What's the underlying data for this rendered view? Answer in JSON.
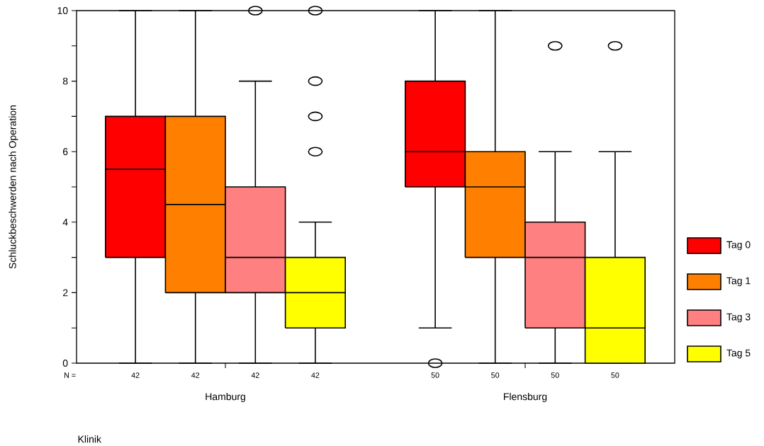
{
  "chart_data": {
    "type": "box",
    "xlabel": "Klinik",
    "ylabel": "Schluckbeschwerden nach Operation",
    "categories": [
      "Hamburg",
      "Flensburg"
    ],
    "series": [
      {
        "name": "Tag 0",
        "color": "#ff0000",
        "boxes": [
          {
            "low": 0,
            "q1": 3,
            "median": 5.5,
            "q3": 7,
            "high": 10
          },
          {
            "low": 1,
            "q1": 5,
            "median": 6,
            "q3": 8,
            "high": 10,
            "outliers": [
              0
            ]
          }
        ]
      },
      {
        "name": "Tag 1",
        "color": "#ff8000",
        "boxes": [
          {
            "low": 0,
            "q1": 2,
            "median": 4.5,
            "q3": 7,
            "high": 10
          },
          {
            "low": 0,
            "q1": 3,
            "median": 5,
            "q3": 6,
            "high": 10
          }
        ]
      },
      {
        "name": "Tag 3",
        "color": "#ff8080",
        "boxes": [
          {
            "low": 0,
            "q1": 2,
            "median": 3,
            "q3": 5,
            "high": 8,
            "outliers": [
              10
            ]
          },
          {
            "low": 0,
            "q1": 1,
            "median": 3,
            "q3": 4,
            "high": 6,
            "outliers": [
              9
            ]
          }
        ]
      },
      {
        "name": "Tag 5",
        "color": "#ffff00",
        "boxes": [
          {
            "low": 0,
            "q1": 1,
            "median": 2,
            "q3": 3,
            "high": 4,
            "outliers": [
              6,
              7,
              8,
              10
            ]
          },
          {
            "low": 0,
            "q1": 0,
            "median": 1,
            "q3": 3,
            "high": 6,
            "outliers": [
              9
            ]
          }
        ]
      }
    ],
    "ylim": [
      0,
      10
    ],
    "yticks": [
      0,
      {
        "value": 1,
        "label": null
      },
      2,
      {
        "value": 3,
        "label": null
      },
      4,
      {
        "value": 5,
        "label": null
      },
      6,
      {
        "value": 7,
        "label": null
      },
      8,
      {
        "value": 9,
        "label": null
      },
      10
    ],
    "grid": false,
    "legend": "right",
    "annotations": [
      "N =",
      "42",
      "42",
      "42",
      "42",
      "50",
      "50",
      "50",
      "50"
    ]
  }
}
